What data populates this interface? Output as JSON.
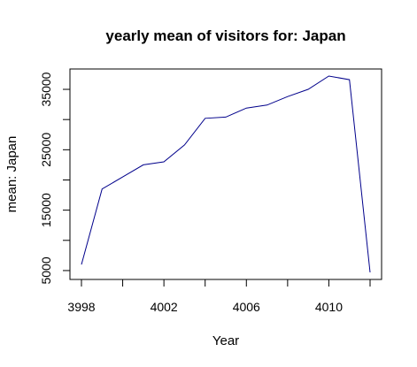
{
  "chart_data": {
    "type": "line",
    "title": "yearly mean of visitors for: Japan",
    "xlabel": "Year",
    "ylabel": "mean: Japan",
    "x": [
      3998,
      3999,
      4000,
      4001,
      4002,
      4003,
      4004,
      4005,
      4006,
      4007,
      4008,
      4009,
      4010,
      4011,
      4012
    ],
    "series": [
      {
        "values": [
          6000,
          18500,
          20500,
          22500,
          23000,
          25800,
          30200,
          30400,
          31900,
          32400,
          33800,
          35000,
          37200,
          36600,
          4700
        ],
        "color": "#00008b"
      }
    ],
    "xlim": [
      3998,
      4012
    ],
    "ylim": [
      4700,
      37200
    ],
    "x_ticks": [
      3998,
      4000,
      4002,
      4004,
      4006,
      4008,
      4010,
      4012
    ],
    "x_tick_labels": [
      "3998",
      "",
      "4002",
      "",
      "4006",
      "",
      "4010",
      ""
    ],
    "y_ticks": [
      5000,
      10000,
      15000,
      20000,
      25000,
      30000,
      35000
    ],
    "y_tick_labels": [
      "5000",
      "",
      "15000",
      "",
      "25000",
      "",
      "35000"
    ],
    "grid": false,
    "legend": "none"
  }
}
